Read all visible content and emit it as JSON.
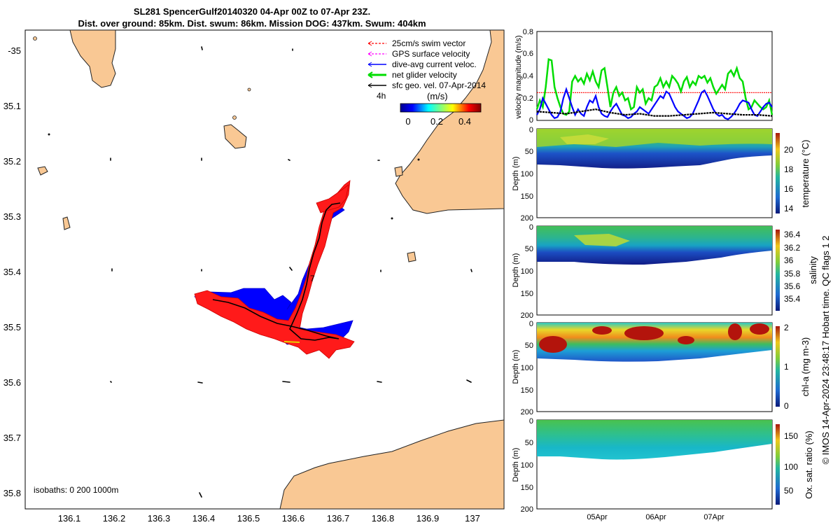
{
  "title": {
    "line1": "SL281 SpencerGulf20140320 04-Apr 00Z to 07-Apr 23Z.",
    "line2": "Dist. over ground: 85km. Dist. swum: 86km. Mission DOG: 437km. Swum: 404km"
  },
  "map": {
    "xlim": [
      136.0,
      137.08
    ],
    "ylim": [
      -35.83,
      -34.95
    ],
    "x_ticks": [
      "136.1",
      "136.2",
      "136.3",
      "136.4",
      "136.5",
      "136.6",
      "136.7",
      "136.8",
      "136.9",
      "137"
    ],
    "y_ticks": [
      "-35",
      "35.1",
      "35.2",
      "35.3",
      "35.4",
      "35.5",
      "35.6",
      "35.7",
      "35.8"
    ],
    "isobath_label": "isobaths: 0   200  1000m",
    "track_marker": "7",
    "land_color": "#f9c894",
    "legend": [
      {
        "label": "25cm/s swim vector",
        "color": "#ff0000"
      },
      {
        "label": "GPS surface velocity",
        "color": "#ff00ff"
      },
      {
        "label": "dive-avg current veloc.",
        "color": "#0000ff"
      },
      {
        "label": "net glider velocity",
        "color": "#00dd00"
      },
      {
        "label": "sfc geo. vel. 07-Apr-2014",
        "color": "#000000"
      }
    ],
    "colorbar": {
      "corner_label": "4h",
      "unit": "(m/s)",
      "ticks": [
        "0",
        "0.2",
        "0.4"
      ],
      "colormap": "jet"
    }
  },
  "chart_data": [
    {
      "type": "line",
      "ylabel": "velocity magnitude (m/s)",
      "ylim": [
        0,
        0.8
      ],
      "y_ticks": [
        "0",
        "0.2",
        "0.4",
        "0.6",
        "0.8"
      ],
      "x_ticks": [
        "05Apr",
        "06Apr",
        "07Apr"
      ],
      "series": [
        {
          "name": "net glider velocity",
          "color": "#00dd00",
          "x": [
            0,
            0.05,
            0.1,
            0.15,
            0.2,
            0.25,
            0.3,
            0.35,
            0.4,
            0.45,
            0.5,
            0.55,
            0.6,
            0.65,
            0.7,
            0.75,
            0.8,
            0.85,
            0.9,
            0.95,
            1.0,
            1.05,
            1.1,
            1.15,
            1.2,
            1.25,
            1.3,
            1.35,
            1.4,
            1.45,
            1.5,
            1.55,
            1.6,
            1.65,
            1.7,
            1.75,
            1.8,
            1.85,
            1.9,
            1.95,
            2.0,
            2.05,
            2.1,
            2.15,
            2.2,
            2.25,
            2.3,
            2.35,
            2.4,
            2.45,
            2.5,
            2.55,
            2.6,
            2.65,
            2.7,
            2.75,
            2.8,
            2.85,
            2.9,
            2.95,
            3.0,
            3.05,
            3.1,
            3.15,
            3.2,
            3.25,
            3.3,
            3.35,
            3.4,
            3.45,
            3.5,
            3.55,
            3.6,
            3.65,
            3.7,
            3.75,
            3.8,
            3.85,
            3.9,
            3.95,
            4.0
          ],
          "y": [
            0.1,
            0.18,
            0.12,
            0.3,
            0.55,
            0.54,
            0.3,
            0.2,
            0.12,
            0.06,
            0.05,
            0.08,
            0.35,
            0.4,
            0.35,
            0.38,
            0.33,
            0.42,
            0.36,
            0.44,
            0.35,
            0.3,
            0.45,
            0.47,
            0.3,
            0.12,
            0.25,
            0.3,
            0.22,
            0.25,
            0.18,
            0.2,
            0.1,
            0.12,
            0.3,
            0.25,
            0.28,
            0.15,
            0.2,
            0.18,
            0.3,
            0.32,
            0.38,
            0.3,
            0.35,
            0.3,
            0.4,
            0.37,
            0.33,
            0.26,
            0.35,
            0.39,
            0.3,
            0.35,
            0.32,
            0.4,
            0.38,
            0.4,
            0.34,
            0.38,
            0.3,
            0.24,
            0.28,
            0.32,
            0.28,
            0.42,
            0.45,
            0.4,
            0.47,
            0.38,
            0.35,
            0.2,
            0.1,
            0.12,
            0.18,
            0.15,
            0.12,
            0.1,
            0.12,
            0.18,
            0.05
          ]
        },
        {
          "name": "dive-avg current veloc.",
          "color": "#0000ff",
          "x": [
            0,
            0.05,
            0.1,
            0.15,
            0.2,
            0.25,
            0.3,
            0.35,
            0.4,
            0.45,
            0.5,
            0.55,
            0.6,
            0.65,
            0.7,
            0.75,
            0.8,
            0.85,
            0.9,
            0.95,
            1.0,
            1.05,
            1.1,
            1.15,
            1.2,
            1.25,
            1.3,
            1.35,
            1.4,
            1.45,
            1.5,
            1.55,
            1.6,
            1.65,
            1.7,
            1.75,
            1.8,
            1.85,
            1.9,
            1.95,
            2.0,
            2.05,
            2.1,
            2.15,
            2.2,
            2.25,
            2.3,
            2.35,
            2.4,
            2.45,
            2.5,
            2.55,
            2.6,
            2.65,
            2.7,
            2.75,
            2.8,
            2.85,
            2.9,
            2.95,
            3.0,
            3.05,
            3.1,
            3.15,
            3.2,
            3.25,
            3.3,
            3.35,
            3.4,
            3.45,
            3.5,
            3.55,
            3.6,
            3.65,
            3.7,
            3.75,
            3.8,
            3.85,
            3.9,
            3.95,
            4.0
          ],
          "y": [
            0.05,
            0.1,
            0.2,
            0.15,
            0.1,
            0.05,
            0.02,
            0.03,
            0.08,
            0.2,
            0.28,
            0.2,
            0.12,
            0.05,
            0.1,
            0.06,
            0.04,
            0.12,
            0.18,
            0.16,
            0.22,
            0.12,
            0.06,
            0.04,
            0.03,
            0.08,
            0.12,
            0.15,
            0.1,
            0.05,
            0.04,
            0.02,
            0.03,
            0.06,
            0.08,
            0.12,
            0.1,
            0.08,
            0.06,
            0.1,
            0.14,
            0.18,
            0.22,
            0.2,
            0.26,
            0.24,
            0.18,
            0.12,
            0.08,
            0.06,
            0.04,
            0.02,
            0.03,
            0.06,
            0.12,
            0.18,
            0.25,
            0.27,
            0.22,
            0.16,
            0.1,
            0.06,
            0.04,
            0.05,
            0.02,
            0.01,
            0.03,
            0.06,
            0.1,
            0.15,
            0.18,
            0.17,
            0.16,
            0.1,
            0.05,
            0.04,
            0.08,
            0.12,
            0.15,
            0.16,
            0.12
          ]
        },
        {
          "name": "sfc geo. vel. 07-Apr-2014",
          "color": "#000000",
          "x": [
            0,
            0.25,
            0.5,
            0.75,
            1.0,
            1.25,
            1.5,
            1.75,
            2.0,
            2.25,
            2.5,
            2.75,
            3.0,
            3.25,
            3.5,
            3.75,
            4.0
          ],
          "y": [
            0.08,
            0.07,
            0.06,
            0.08,
            0.1,
            0.07,
            0.05,
            0.06,
            0.04,
            0.04,
            0.05,
            0.06,
            0.07,
            0.06,
            0.05,
            0.05,
            0.04
          ]
        }
      ],
      "reference_line": {
        "y": 0.25,
        "color": "#ff0000"
      }
    },
    {
      "type": "heatmap",
      "ylabel": "Depth (m)",
      "y_ticks": [
        "0",
        "50",
        "100",
        "150",
        "200"
      ],
      "colorbar_label": "temperature (°C)",
      "colorbar_ticks": [
        "14",
        "16",
        "18",
        "20"
      ]
    },
    {
      "type": "heatmap",
      "ylabel": "Depth (m)",
      "y_ticks": [
        "0",
        "50",
        "100",
        "150",
        "200"
      ],
      "colorbar_label": "salinity",
      "colorbar_ticks": [
        "35.4",
        "35.6",
        "35.8",
        "36",
        "36.2",
        "36.4"
      ]
    },
    {
      "type": "heatmap",
      "ylabel": "Depth (m)",
      "y_ticks": [
        "0",
        "50",
        "100",
        "150",
        "200"
      ],
      "colorbar_label": "chl-a (mg m-3)",
      "colorbar_ticks": [
        "0",
        "1",
        "2"
      ]
    },
    {
      "type": "heatmap",
      "ylabel": "Depth (m)",
      "y_ticks": [
        "0",
        "50",
        "100",
        "150",
        "200"
      ],
      "colorbar_label": "Ox. sat. ratio (%)",
      "colorbar_ticks": [
        "50",
        "100",
        "150"
      ]
    }
  ],
  "side_note": "© IMOS 14-Apr-2024 23:48:17 Hobart time. QC flags 1  2"
}
